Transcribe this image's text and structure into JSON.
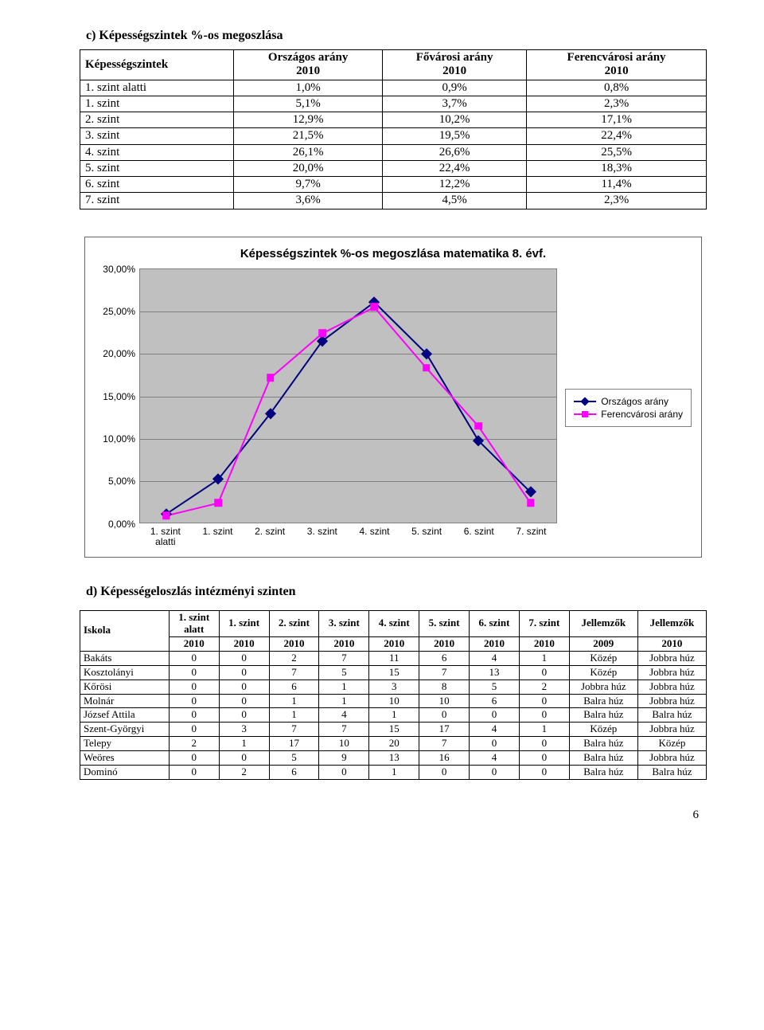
{
  "section_c": "c)  Képességszintek %-os megoszlása",
  "table1": {
    "headers": [
      "Képességszintek",
      "Országos arány\n2010",
      "Fővárosi arány\n2010",
      "Ferencvárosi arány\n2010"
    ],
    "rows": [
      [
        "1. szint alatti",
        "1,0%",
        "0,9%",
        "0,8%"
      ],
      [
        "1. szint",
        "5,1%",
        "3,7%",
        "2,3%"
      ],
      [
        "2. szint",
        "12,9%",
        "10,2%",
        "17,1%"
      ],
      [
        "3. szint",
        "21,5%",
        "19,5%",
        "22,4%"
      ],
      [
        "4. szint",
        "26,1%",
        "26,6%",
        "25,5%"
      ],
      [
        "5. szint",
        "20,0%",
        "22,4%",
        "18,3%"
      ],
      [
        "6. szint",
        "9,7%",
        "12,2%",
        "11,4%"
      ],
      [
        "7. szint",
        "3,6%",
        "4,5%",
        "2,3%"
      ]
    ]
  },
  "chart": {
    "title": "Képességszintek %-os megoszlása matematika 8. évf.",
    "categories": [
      "1. szint alatti",
      "1. szint",
      "2. szint",
      "3. szint",
      "4. szint",
      "5. szint",
      "6. szint",
      "7. szint"
    ],
    "series": [
      {
        "name": "Országos arány",
        "color": "#000080",
        "marker": "diamond",
        "markerFill": "#000080",
        "values": [
          1.0,
          5.1,
          12.9,
          21.5,
          26.1,
          20.0,
          9.7,
          3.6
        ]
      },
      {
        "name": "Ferencvárosi arány",
        "color": "#ff00ff",
        "marker": "square",
        "markerFill": "#ff00ff",
        "values": [
          0.8,
          2.3,
          17.1,
          22.4,
          25.5,
          18.3,
          11.4,
          2.3
        ]
      }
    ],
    "yticks": [
      "0,00%",
      "5,00%",
      "10,00%",
      "15,00%",
      "20,00%",
      "25,00%",
      "30,00%"
    ],
    "ymax": 30,
    "plot_bg": "#c0c0c0",
    "grid_color": "#808080",
    "line_width": 2,
    "marker_size": 6
  },
  "section_d": "d)  Képességeloszlás intézményi szinten",
  "table2": {
    "headers_top": [
      "Iskola",
      "1. szint alatt",
      "1. szint",
      "2. szint",
      "3. szint",
      "4. szint",
      "5. szint",
      "6. szint",
      "7. szint",
      "Jellemzők",
      "Jellemzők"
    ],
    "headers_bot": [
      "",
      "2010",
      "2010",
      "2010",
      "2010",
      "2010",
      "2010",
      "2010",
      "2010",
      "2009",
      "2010"
    ],
    "rows": [
      [
        "Bakáts",
        "0",
        "0",
        "2",
        "7",
        "11",
        "6",
        "4",
        "1",
        "Közép",
        "Jobbra húz"
      ],
      [
        "Kosztolányi",
        "0",
        "0",
        "7",
        "5",
        "15",
        "7",
        "13",
        "0",
        "Közép",
        "Jobbra húz"
      ],
      [
        "Kőrösi",
        "0",
        "0",
        "6",
        "1",
        "3",
        "8",
        "5",
        "2",
        "Jobbra húz",
        "Jobbra húz"
      ],
      [
        "Molnár",
        "0",
        "0",
        "1",
        "1",
        "10",
        "10",
        "6",
        "0",
        "Balra húz",
        "Jobbra húz"
      ],
      [
        "József Attila",
        "0",
        "0",
        "1",
        "4",
        "1",
        "0",
        "0",
        "0",
        "Balra húz",
        "Balra húz"
      ],
      [
        "Szent-Györgyi",
        "0",
        "3",
        "7",
        "7",
        "15",
        "17",
        "4",
        "1",
        "Közép",
        "Jobbra húz"
      ],
      [
        "Telepy",
        "2",
        "1",
        "17",
        "10",
        "20",
        "7",
        "0",
        "0",
        "Balra húz",
        "Közép"
      ],
      [
        "Weöres",
        "0",
        "0",
        "5",
        "9",
        "13",
        "16",
        "4",
        "0",
        "Balra húz",
        "Jobbra húz"
      ],
      [
        "Dominó",
        "0",
        "2",
        "6",
        "0",
        "1",
        "0",
        "0",
        "0",
        "Balra húz",
        "Balra húz"
      ]
    ]
  },
  "page_number": "6"
}
